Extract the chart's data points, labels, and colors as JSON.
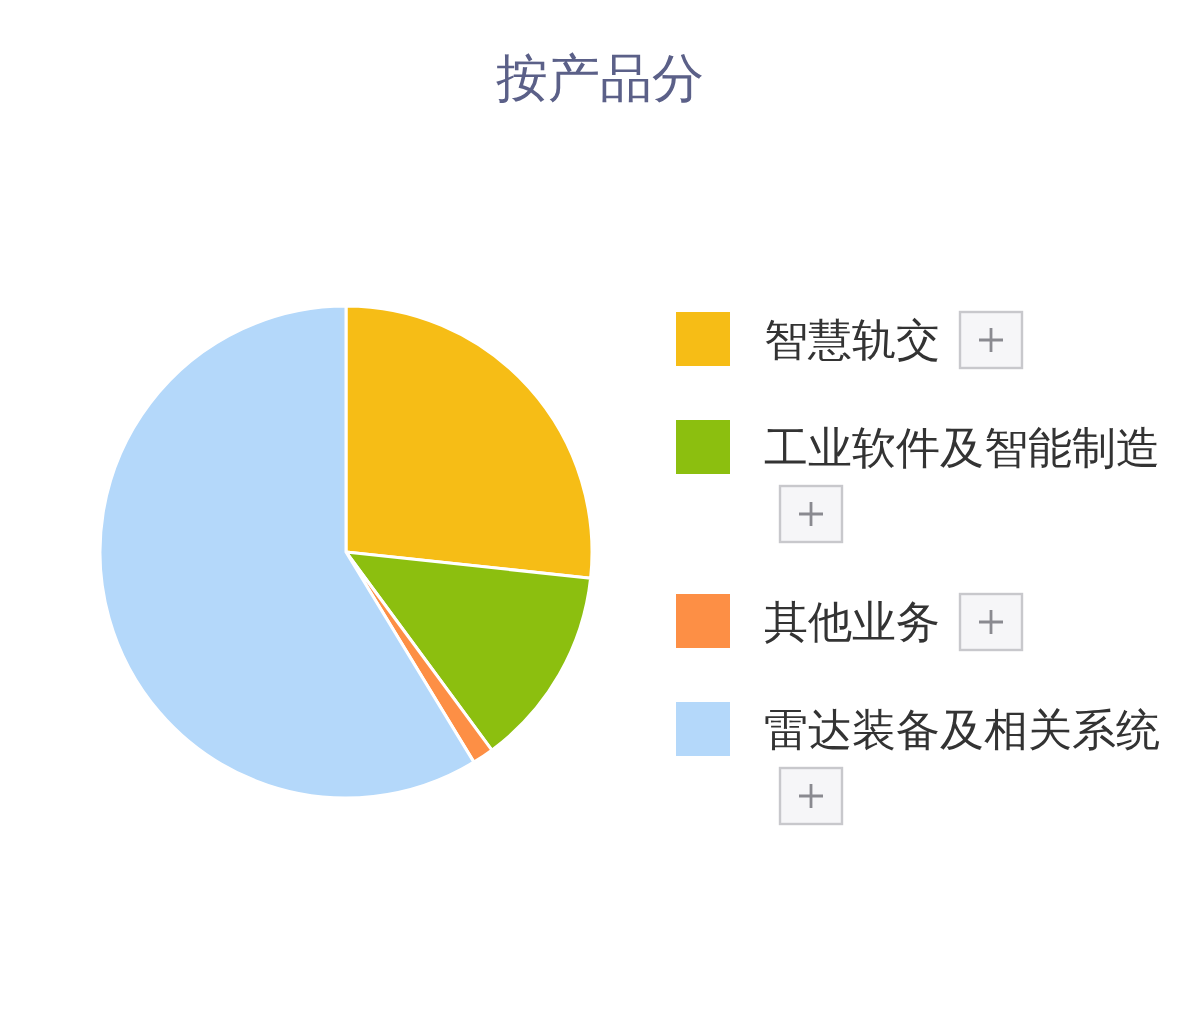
{
  "chart_data": {
    "type": "pie",
    "title": "按产品分",
    "categories": [
      "智慧轨交",
      "工业软件及智能制造",
      "其他业务",
      "雷达装备及相关系统"
    ],
    "values": [
      26.7,
      13.2,
      1.4,
      58.7
    ],
    "colors": [
      "#f6bd16",
      "#8cbf0f",
      "#fd8f45",
      "#b4d8fa"
    ],
    "legend": "right"
  }
}
